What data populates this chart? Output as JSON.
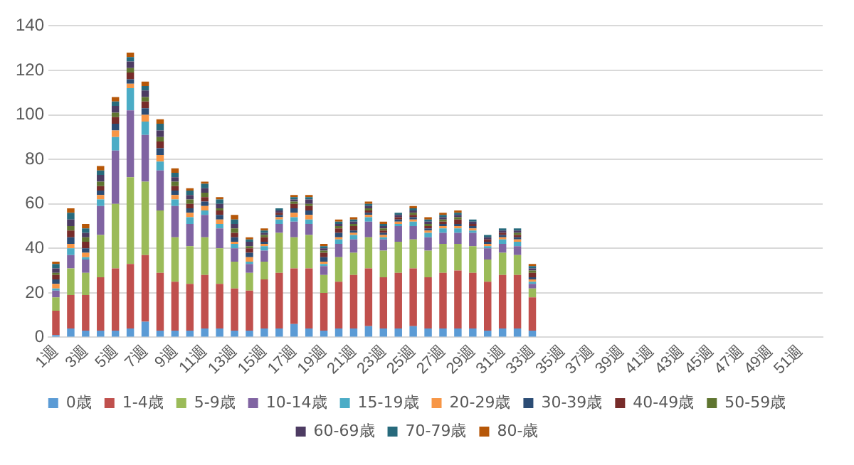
{
  "chart_data": {
    "type": "bar",
    "stacked": true,
    "categories": [
      "1週",
      null,
      "3週",
      null,
      "5週",
      null,
      "7週",
      null,
      "9週",
      null,
      "11週",
      null,
      "13週",
      null,
      "15週",
      null,
      "17週",
      null,
      "19週",
      null,
      "21週",
      null,
      "23週",
      null,
      "25週",
      null,
      "27週",
      null,
      "29週",
      null,
      "31週",
      null,
      "33週",
      null,
      "35週",
      null,
      "37週",
      null,
      "39週",
      null,
      "41週",
      null,
      "43週",
      null,
      "45週",
      null,
      "47週",
      null,
      "49週",
      null,
      "51週",
      null
    ],
    "ylim": [
      0,
      140
    ],
    "yticks": [
      0,
      20,
      40,
      60,
      80,
      100,
      120,
      140
    ],
    "grid": "y",
    "legend": "bottom",
    "series": [
      {
        "name": "0歳",
        "color": "#5b9bd5",
        "values": [
          1,
          4,
          3,
          3,
          3,
          4,
          7,
          3,
          3,
          3,
          4,
          4,
          3,
          3,
          4,
          4,
          6,
          4,
          3,
          4,
          4,
          5,
          4,
          4,
          5,
          4,
          4,
          4,
          4,
          3,
          4,
          4,
          3,
          null,
          null,
          null,
          null,
          null,
          null,
          null,
          null,
          null,
          null,
          null,
          null,
          null,
          null,
          null,
          null,
          null,
          null,
          null
        ]
      },
      {
        "name": "1-4歳",
        "color": "#c0504d",
        "values": [
          11,
          15,
          16,
          24,
          28,
          29,
          30,
          26,
          22,
          21,
          24,
          20,
          19,
          18,
          22,
          25,
          25,
          27,
          17,
          21,
          24,
          26,
          23,
          25,
          26,
          23,
          25,
          26,
          25,
          22,
          24,
          24,
          15,
          null,
          null,
          null,
          null,
          null,
          null,
          null,
          null,
          null,
          null,
          null,
          null,
          null,
          null,
          null,
          null,
          null,
          null,
          null
        ]
      },
      {
        "name": "5-9歳",
        "color": "#9bbb59",
        "values": [
          6,
          12,
          10,
          19,
          29,
          39,
          33,
          28,
          20,
          17,
          17,
          16,
          12,
          8,
          8,
          18,
          14,
          15,
          8,
          11,
          10,
          14,
          12,
          14,
          13,
          12,
          13,
          12,
          12,
          10,
          10,
          9,
          4,
          null,
          null,
          null,
          null,
          null,
          null,
          null,
          null,
          null,
          null,
          null,
          null,
          null,
          null,
          null,
          null,
          null,
          null,
          null
        ]
      },
      {
        "name": "10-14歳",
        "color": "#8064a2",
        "values": [
          3,
          6,
          6,
          13,
          24,
          30,
          21,
          18,
          14,
          10,
          10,
          9,
          6,
          4,
          5,
          4,
          7,
          5,
          4,
          6,
          6,
          7,
          5,
          7,
          6,
          6,
          5,
          5,
          6,
          5,
          4,
          4,
          2,
          null,
          null,
          null,
          null,
          null,
          null,
          null,
          null,
          null,
          null,
          null,
          null,
          null,
          null,
          null,
          null,
          null,
          null,
          null
        ]
      },
      {
        "name": "15-19歳",
        "color": "#4bacc6",
        "values": [
          1,
          3,
          1,
          3,
          6,
          10,
          6,
          4,
          3,
          3,
          2,
          2,
          2,
          1,
          2,
          2,
          2,
          2,
          1,
          2,
          2,
          2,
          1,
          1,
          2,
          2,
          2,
          2,
          1,
          1,
          2,
          2,
          1,
          null,
          null,
          null,
          null,
          null,
          null,
          null,
          null,
          null,
          null,
          null,
          null,
          null,
          null,
          null,
          null,
          null,
          null,
          null
        ]
      },
      {
        "name": "20-29歳",
        "color": "#f79646",
        "values": [
          2,
          2,
          2,
          2,
          3,
          2,
          3,
          3,
          2,
          2,
          2,
          2,
          1,
          2,
          1,
          1,
          2,
          2,
          1,
          1,
          1,
          1,
          1,
          1,
          1,
          1,
          1,
          1,
          1,
          1,
          1,
          1,
          1,
          null,
          null,
          null,
          null,
          null,
          null,
          null,
          null,
          null,
          null,
          null,
          null,
          null,
          null,
          null,
          null,
          null,
          null,
          null
        ]
      },
      {
        "name": "30-39歳",
        "color": "#2c4d75",
        "values": [
          2,
          3,
          2,
          2,
          3,
          2,
          3,
          3,
          2,
          2,
          2,
          2,
          2,
          2,
          1,
          1,
          2,
          2,
          2,
          2,
          1,
          1,
          1,
          1,
          1,
          1,
          1,
          1,
          1,
          1,
          1,
          1,
          1,
          null,
          null,
          null,
          null,
          null,
          null,
          null,
          null,
          null,
          null,
          null,
          null,
          null,
          null,
          null,
          null,
          null,
          null,
          null
        ]
      },
      {
        "name": "40-49歳",
        "color": "#772c2a",
        "values": [
          2,
          3,
          3,
          2,
          3,
          3,
          3,
          3,
          2,
          2,
          2,
          2,
          2,
          2,
          2,
          1,
          2,
          2,
          2,
          2,
          2,
          1,
          1,
          1,
          1,
          1,
          1,
          2,
          1,
          1,
          1,
          1,
          2,
          null,
          null,
          null,
          null,
          null,
          null,
          null,
          null,
          null,
          null,
          null,
          null,
          null,
          null,
          null,
          null,
          null,
          null,
          null
        ]
      },
      {
        "name": "50-59歳",
        "color": "#5f7530",
        "values": [
          1,
          2,
          2,
          2,
          2,
          2,
          2,
          2,
          2,
          2,
          2,
          1,
          2,
          1,
          1,
          0,
          1,
          1,
          1,
          1,
          1,
          1,
          1,
          0,
          1,
          1,
          1,
          1,
          0,
          0,
          0,
          1,
          1,
          null,
          null,
          null,
          null,
          null,
          null,
          null,
          null,
          null,
          null,
          null,
          null,
          null,
          null,
          null,
          null,
          null,
          null,
          null
        ]
      },
      {
        "name": "60-69歳",
        "color": "#4d3b62",
        "values": [
          2,
          3,
          2,
          3,
          3,
          3,
          3,
          3,
          2,
          2,
          2,
          2,
          2,
          2,
          1,
          1,
          1,
          2,
          1,
          1,
          1,
          1,
          1,
          1,
          1,
          1,
          1,
          1,
          1,
          1,
          1,
          1,
          1,
          null,
          null,
          null,
          null,
          null,
          null,
          null,
          null,
          null,
          null,
          null,
          null,
          null,
          null,
          null,
          null,
          null,
          null,
          null
        ]
      },
      {
        "name": "70-79歳",
        "color": "#276a7c",
        "values": [
          2,
          3,
          2,
          2,
          2,
          2,
          2,
          3,
          2,
          2,
          2,
          2,
          2,
          1,
          1,
          1,
          1,
          1,
          1,
          1,
          1,
          1,
          1,
          1,
          1,
          1,
          1,
          1,
          1,
          1,
          1,
          1,
          1,
          null,
          null,
          null,
          null,
          null,
          null,
          null,
          null,
          null,
          null,
          null,
          null,
          null,
          null,
          null,
          null,
          null,
          null,
          null
        ]
      },
      {
        "name": "80-歳",
        "color": "#b65708",
        "values": [
          1,
          2,
          2,
          2,
          2,
          2,
          2,
          2,
          2,
          1,
          1,
          1,
          2,
          1,
          1,
          0,
          1,
          1,
          1,
          1,
          1,
          1,
          1,
          0,
          1,
          1,
          1,
          1,
          0,
          0,
          0,
          0,
          1,
          null,
          null,
          null,
          null,
          null,
          null,
          null,
          null,
          null,
          null,
          null,
          null,
          null,
          null,
          null,
          null,
          null,
          null,
          null
        ]
      }
    ]
  }
}
